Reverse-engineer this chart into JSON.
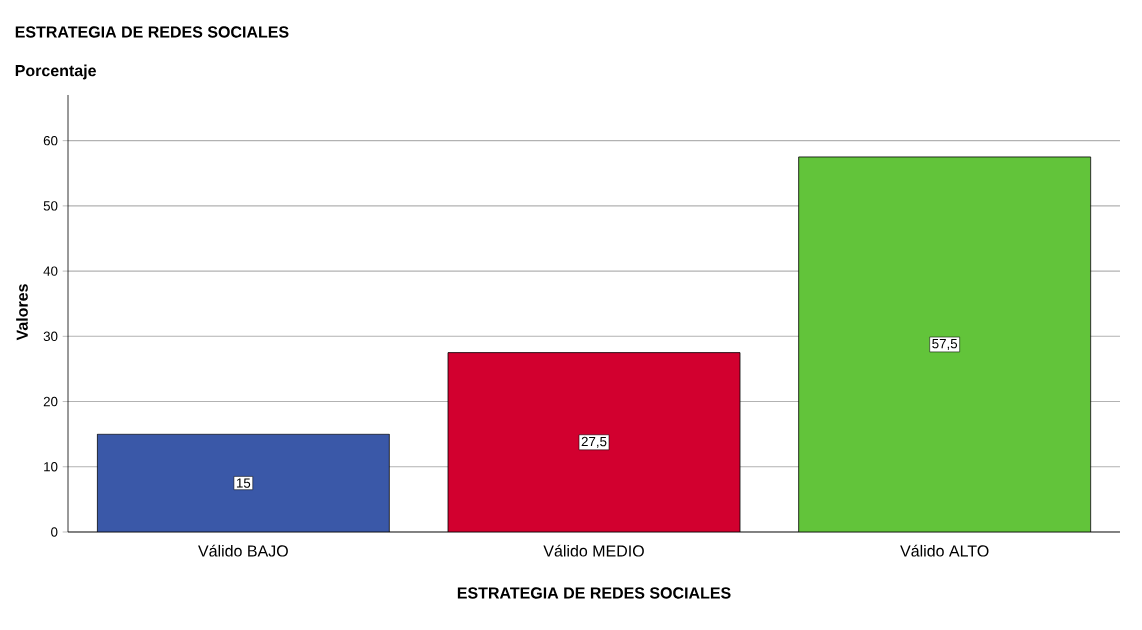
{
  "chart_data": {
    "type": "bar",
    "title": "ESTRATEGIA DE REDES SOCIALES",
    "subtitle": "Porcentaje",
    "xlabel": "ESTRATEGIA DE REDES SOCIALES",
    "ylabel": "Valores",
    "categories": [
      "Válido BAJO",
      "Válido MEDIO",
      "Válido ALTO"
    ],
    "values": [
      15,
      27.5,
      57.5
    ],
    "colors": [
      "#3a58a8",
      "#d2002f",
      "#62c43a"
    ],
    "value_labels": [
      "15",
      "27,5",
      "57,5"
    ],
    "ylim": [
      0,
      67
    ],
    "yticks": [
      0,
      10,
      20,
      30,
      40,
      50,
      60
    ],
    "grid": "y"
  }
}
